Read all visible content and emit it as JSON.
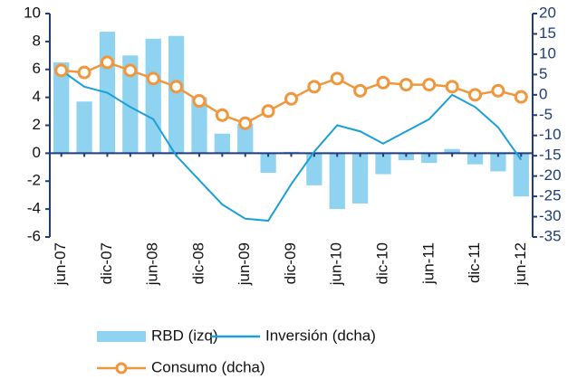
{
  "chart_data": {
    "type": "bar",
    "categories": [
      "jun-07",
      null,
      "dic-07",
      null,
      "jun-08",
      null,
      "dic-08",
      null,
      "jun-09",
      null,
      "dic-09",
      null,
      "jun-10",
      null,
      "dic-10",
      null,
      "jun-11",
      null,
      "dic-11",
      null,
      "jun-12"
    ],
    "series": [
      {
        "name": "RBD (izq)",
        "type": "bar",
        "axis": "y",
        "color": "#8fd3f0",
        "values": [
          6.5,
          3.7,
          8.7,
          7.0,
          8.2,
          8.4,
          4.0,
          1.4,
          2.1,
          -1.4,
          0.1,
          -2.3,
          -4.0,
          -3.6,
          -1.5,
          -0.5,
          -0.7,
          0.3,
          -0.8,
          -1.3,
          -3.1
        ]
      },
      {
        "name": "Inversión (dcha)",
        "type": "line",
        "axis": "y2",
        "color": "#1a9fd8",
        "values": [
          6,
          2,
          0.5,
          -3,
          -6,
          -15,
          -21,
          -27,
          -30.5,
          -31,
          -22,
          -14,
          -7.5,
          -9,
          -12,
          -9,
          -6,
          0,
          -3,
          -8,
          -16
        ]
      },
      {
        "name": "Consumo (dcha)",
        "type": "line",
        "axis": "y2",
        "color": "#f0963c",
        "marker": "circle",
        "values": [
          6,
          5.5,
          8,
          6,
          4,
          2,
          -1.5,
          -5,
          -7,
          -4,
          -1,
          2,
          4,
          1,
          3,
          2.5,
          2.5,
          2,
          0,
          1,
          -0.5
        ]
      }
    ],
    "ylim": [
      -6,
      10
    ],
    "yticks": [
      -6,
      -4,
      -2,
      0,
      2,
      4,
      6,
      8,
      10
    ],
    "y2lim": [
      -35,
      20
    ],
    "y2ticks": [
      -35,
      -30,
      -25,
      -20,
      -15,
      -10,
      -5,
      0,
      5,
      10,
      15,
      20
    ]
  }
}
